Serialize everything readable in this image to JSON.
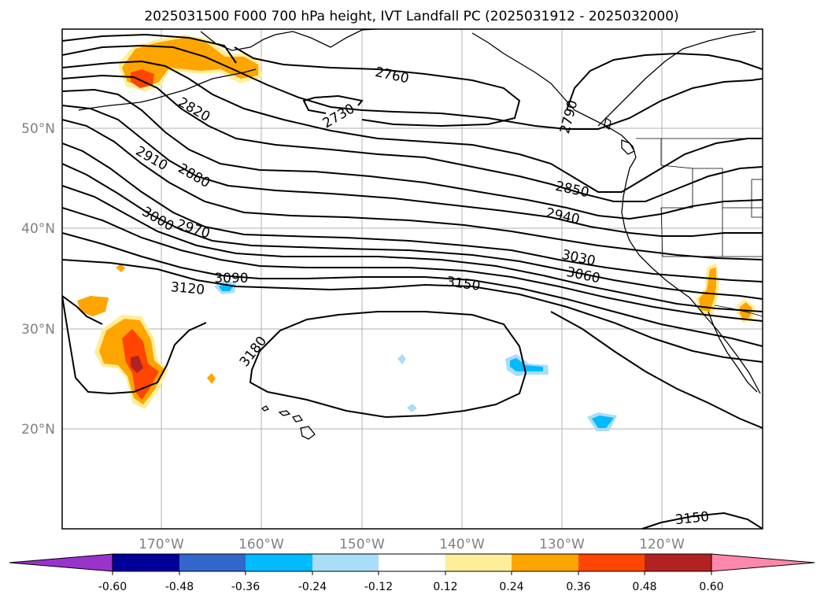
{
  "title": "2025031500 F000 700 hPa height, IVT Landfall PC (2025031912 - 2025032000)",
  "map": {
    "lat_ticks": [
      "50°N",
      "40°N",
      "30°N",
      "20°N"
    ],
    "lon_ticks": [
      "170°W",
      "160°W",
      "150°W",
      "140°W",
      "130°W",
      "120°W"
    ],
    "gridlines": true,
    "contour_labels": [
      "2760",
      "2730",
      "2790",
      "2820",
      "2910",
      "2880",
      "2850",
      "3000",
      "2970",
      "2940",
      "3030",
      "3060",
      "3090",
      "3120",
      "3150",
      "3180",
      "3150"
    ]
  },
  "colorbar": {
    "extend": "both",
    "tick_labels": [
      "-0.60",
      "-0.48",
      "-0.36",
      "-0.24",
      "-0.12",
      "0.12",
      "0.24",
      "0.36",
      "0.48",
      "0.60"
    ],
    "colors": [
      "#9933cc",
      "#000099",
      "#3366cc",
      "#00bbff",
      "#aaddf7",
      "#ffffff",
      "#ffee99",
      "#ffa500",
      "#ff4500",
      "#b22222",
      "#ff88aa"
    ]
  }
}
